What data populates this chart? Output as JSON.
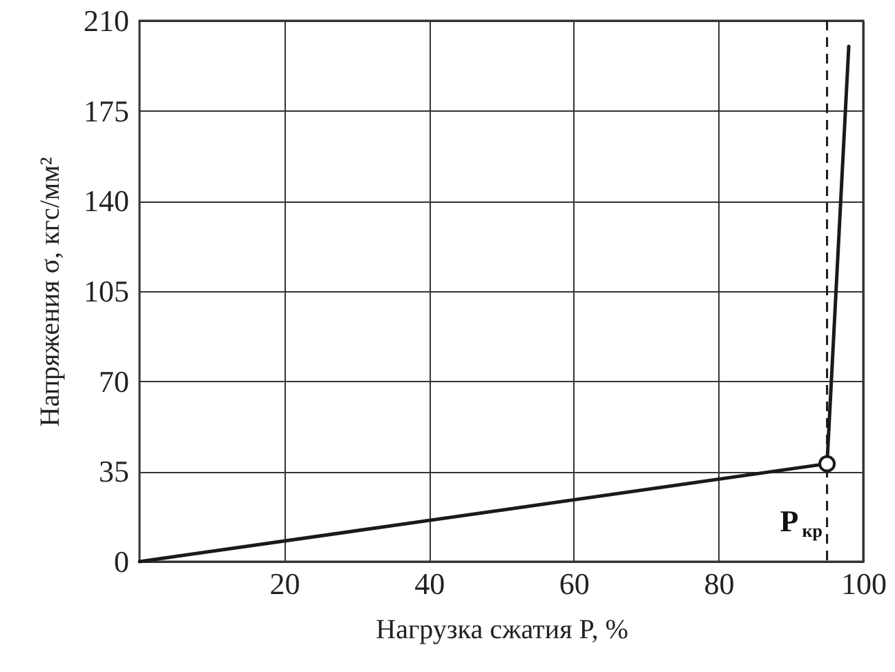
{
  "chart_data": {
    "type": "line",
    "xlabel": "Нагрузка сжатия P, %",
    "ylabel": "Напряжения σ, кгс/мм²",
    "xlim": [
      0,
      100
    ],
    "xticks": [
      20,
      40,
      60,
      80,
      100
    ],
    "ylim": [
      0,
      210
    ],
    "yticks": [
      0,
      35,
      70,
      105,
      140,
      175,
      210
    ],
    "grid": true,
    "series": [
      {
        "color": "#1a1a1a",
        "x": [
          0,
          95,
          98
        ],
        "values": [
          0,
          38,
          200
        ],
        "marker": "none",
        "line_style": "solid"
      },
      {
        "type": "scatter",
        "color": "#1a1a1a",
        "x": [
          95
        ],
        "values": [
          38
        ],
        "marker": "circle"
      }
    ],
    "ref_lines": [
      {
        "axis": "x",
        "value": 95,
        "label": "P$_{кр}$",
        "line_style": "dashed",
        "color": "#1a1a1a"
      }
    ]
  }
}
